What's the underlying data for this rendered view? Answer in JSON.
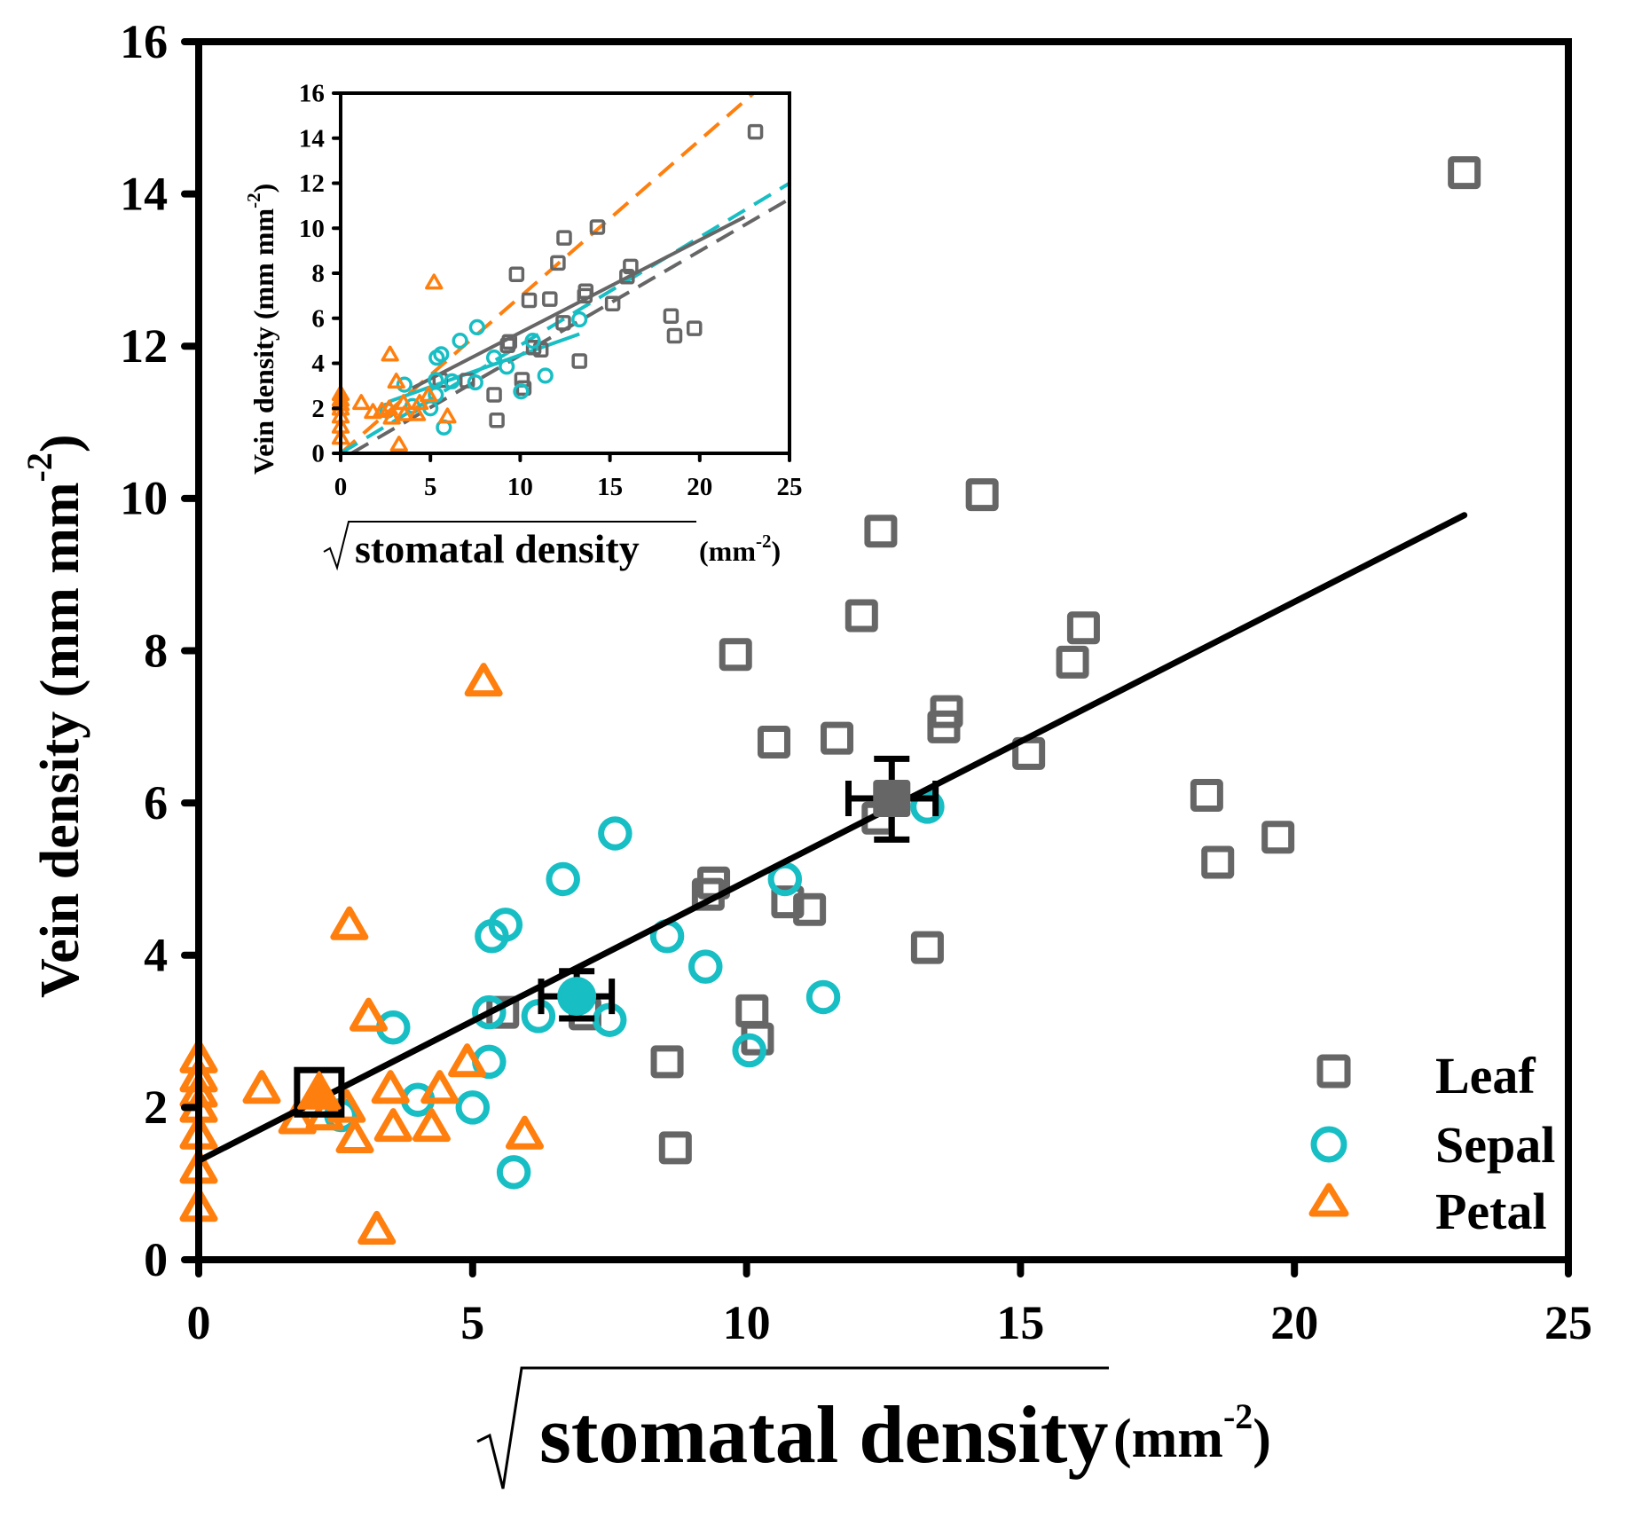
{
  "chart_data": {
    "type": "scatter",
    "title": "",
    "xlabel": "stomatal density",
    "xlabel_unit": "(mm",
    "xlabel_unit_sup": "-2",
    "xlabel_unit_close": ")",
    "xlabel_sqrt": true,
    "ylabel": "Vein density (mm mm",
    "ylabel_sup": "-2",
    "ylabel_close": ")",
    "xlim": [
      0,
      25
    ],
    "ylim": [
      0,
      16
    ],
    "xticks": [
      0,
      5,
      10,
      15,
      20,
      25
    ],
    "yticks": [
      0,
      2,
      4,
      6,
      8,
      10,
      12,
      14,
      16
    ],
    "grid": false,
    "legend_position": "bottom-right",
    "colors": {
      "Leaf": "#666666",
      "Sepal": "#17BEC4",
      "Petal": "#FF7F0E",
      "axis": "#000000",
      "fit": "#000000"
    },
    "series": [
      {
        "name": "Leaf",
        "marker": "square",
        "points": [
          [
            23.1,
            14.28
          ],
          [
            14.3,
            10.05
          ],
          [
            12.45,
            9.57
          ],
          [
            12.1,
            8.46
          ],
          [
            9.8,
            7.95
          ],
          [
            16.15,
            8.3
          ],
          [
            15.95,
            7.85
          ],
          [
            13.65,
            7.2
          ],
          [
            13.6,
            7.0
          ],
          [
            10.5,
            6.8
          ],
          [
            11.65,
            6.85
          ],
          [
            15.15,
            6.65
          ],
          [
            12.4,
            5.8
          ],
          [
            18.4,
            6.1
          ],
          [
            19.7,
            5.55
          ],
          [
            18.6,
            5.22
          ],
          [
            9.4,
            4.95
          ],
          [
            9.3,
            4.8
          ],
          [
            10.75,
            4.7
          ],
          [
            11.15,
            4.6
          ],
          [
            13.3,
            4.1
          ],
          [
            10.1,
            3.27
          ],
          [
            10.2,
            2.9
          ],
          [
            5.55,
            3.25
          ],
          [
            7.05,
            3.23
          ],
          [
            8.55,
            2.6
          ],
          [
            8.7,
            1.47
          ]
        ],
        "mean": {
          "x": 12.65,
          "y": 6.06,
          "x_err": [
            11.86,
            13.45
          ],
          "y_err": [
            5.52,
            6.58
          ]
        }
      },
      {
        "name": "Sepal",
        "marker": "circle",
        "points": [
          [
            3.55,
            3.05
          ],
          [
            4.0,
            2.1
          ],
          [
            5.0,
            2.0
          ],
          [
            5.3,
            2.6
          ],
          [
            5.3,
            3.25
          ],
          [
            5.35,
            4.25
          ],
          [
            5.6,
            4.4
          ],
          [
            5.75,
            1.15
          ],
          [
            6.2,
            3.2
          ],
          [
            6.65,
            5.0
          ],
          [
            7.6,
            5.6
          ],
          [
            7.5,
            3.15
          ],
          [
            8.55,
            4.25
          ],
          [
            9.25,
            3.85
          ],
          [
            10.05,
            2.75
          ],
          [
            10.7,
            5.0
          ],
          [
            11.4,
            3.45
          ],
          [
            13.3,
            5.95
          ],
          [
            2.6,
            1.9
          ]
        ],
        "mean": {
          "x": 6.9,
          "y": 3.46,
          "x_err": [
            6.25,
            7.54
          ],
          "y_err": [
            3.17,
            3.79
          ]
        }
      },
      {
        "name": "Petal",
        "marker": "triangle",
        "points": [
          [
            0,
            2.65
          ],
          [
            0,
            2.4
          ],
          [
            0,
            2.2
          ],
          [
            0,
            2.0
          ],
          [
            0,
            1.65
          ],
          [
            0,
            1.2
          ],
          [
            0,
            0.7
          ],
          [
            1.15,
            2.25
          ],
          [
            1.8,
            1.85
          ],
          [
            2.3,
            1.9
          ],
          [
            2.75,
            4.4
          ],
          [
            2.85,
            1.6
          ],
          [
            3.1,
            3.2
          ],
          [
            3.25,
            0.4
          ],
          [
            3.5,
            2.25
          ],
          [
            3.55,
            1.75
          ],
          [
            4.25,
            1.75
          ],
          [
            4.4,
            2.25
          ],
          [
            4.9,
            2.6
          ],
          [
            5.2,
            7.6
          ],
          [
            5.95,
            1.65
          ],
          [
            2.7,
            2.0
          ]
        ],
        "mean": {
          "x": 2.2,
          "y": 2.2,
          "x_err": [
            1.95,
            2.45
          ],
          "y_err": [
            1.95,
            2.45
          ]
        }
      }
    ],
    "fit_line": {
      "x": [
        0,
        23.1
      ],
      "y": [
        1.3,
        9.78
      ]
    },
    "legend": [
      {
        "label": "Leaf",
        "marker": "square"
      },
      {
        "label": "Sepal",
        "marker": "circle"
      },
      {
        "label": "Petal",
        "marker": "triangle"
      }
    ],
    "inset": {
      "xlim": [
        0,
        25
      ],
      "ylim": [
        0,
        16
      ],
      "xticks": [
        0,
        5,
        10,
        15,
        20,
        25
      ],
      "yticks": [
        0,
        2,
        4,
        6,
        8,
        10,
        12,
        14,
        16
      ],
      "xlabel": "stomatal density",
      "xlabel_unit": "(mm",
      "xlabel_unit_sup": "-2",
      "xlabel_unit_close": ")",
      "ylabel": "Vein density (mm mm",
      "ylabel_sup": "-2",
      "ylabel_close": ")",
      "fit_lines": [
        {
          "series": "Petal",
          "style": "dashed",
          "x": [
            0,
            23
          ],
          "y": [
            0,
            16
          ]
        },
        {
          "series": "Sepal",
          "style": "dashed",
          "x": [
            0,
            25
          ],
          "y": [
            0,
            12
          ]
        },
        {
          "series": "Leaf",
          "style": "dashed",
          "x": [
            0.6,
            25
          ],
          "y": [
            0,
            11.3
          ]
        },
        {
          "series": "Leaf",
          "style": "solid",
          "x": [
            4,
            22.5
          ],
          "y": [
            2.9,
            10.5
          ]
        },
        {
          "series": "Sepal",
          "style": "solid",
          "x": [
            2.7,
            13.3
          ],
          "y": [
            2.3,
            5.3
          ]
        }
      ]
    }
  }
}
